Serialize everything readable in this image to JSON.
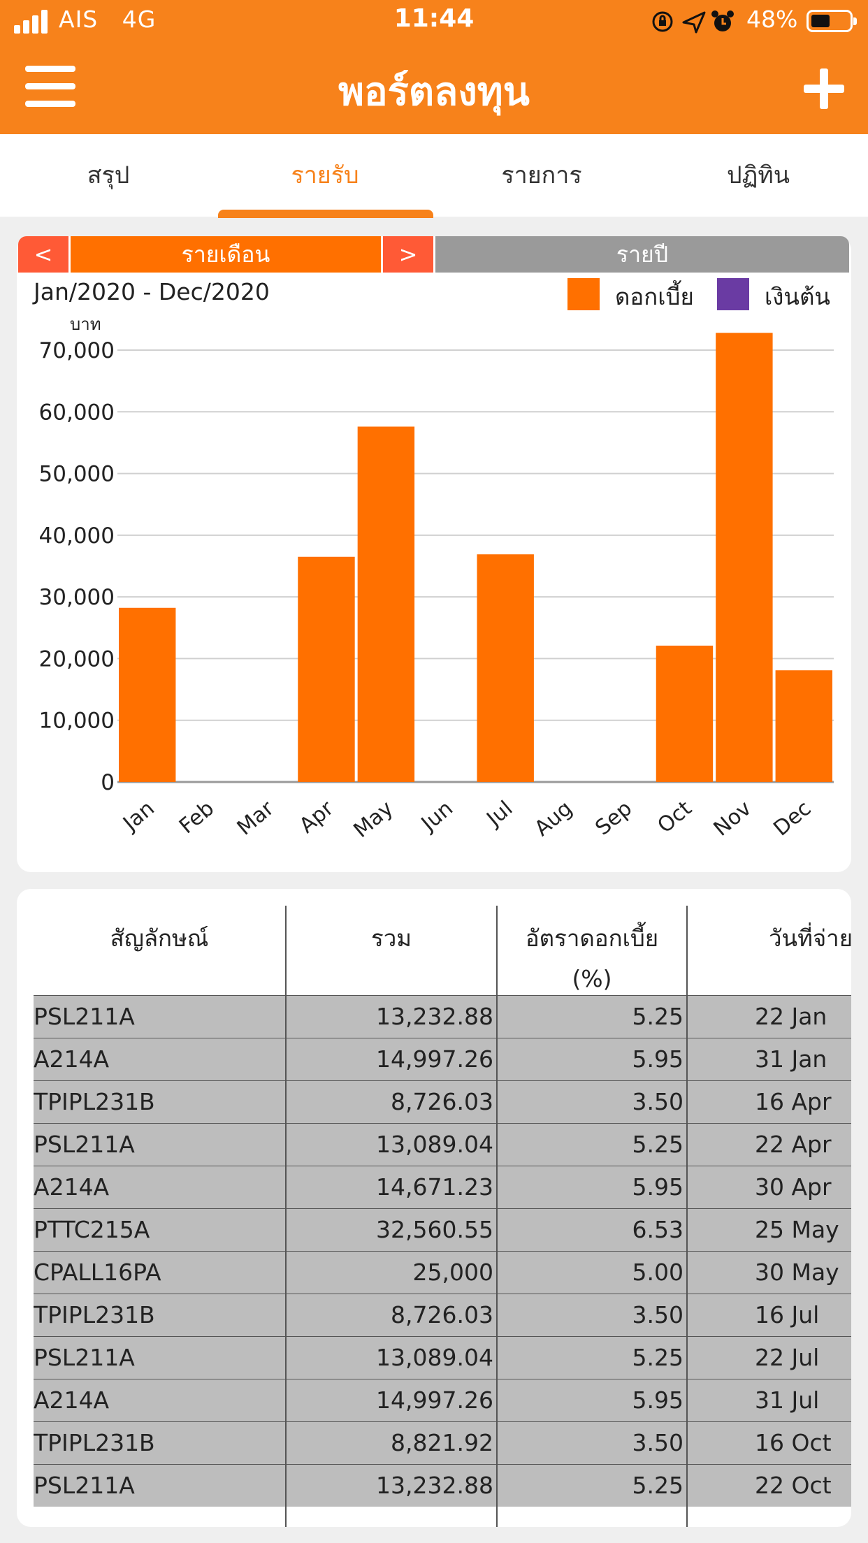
{
  "status_bar": {
    "carrier": "AIS",
    "network": "4G",
    "time": "11:44",
    "battery_percent": "48%",
    "battery_level": 0.48,
    "icons": [
      "signal-icon",
      "orientation-lock-icon",
      "location-arrow-icon",
      "alarm-icon",
      "battery-icon"
    ]
  },
  "app_bar": {
    "title": "พอร์ตลงทุน",
    "menu_icon": "hamburger-menu-icon",
    "add_icon": "plus-icon"
  },
  "tabs": [
    {
      "label": "สรุป",
      "active": false
    },
    {
      "label": "รายรับ",
      "active": true
    },
    {
      "label": "รายการ",
      "active": false
    },
    {
      "label": "ปฏิทิน",
      "active": false
    }
  ],
  "period": {
    "prev_label": "<",
    "monthly_label": "รายเดือน",
    "next_label": ">",
    "yearly_label": "รายปี"
  },
  "colors": {
    "accent": "#f7821b",
    "bar": "#ff7000",
    "nav_red": "#ff5a36",
    "segment_gray": "#9a9a9a",
    "principal": "#6a3ba3"
  },
  "chart_data": {
    "type": "bar",
    "range_label": "Jan/2020 - Dec/2020",
    "ylabel": "บาท",
    "ylim": [
      0,
      70000
    ],
    "yticks": [
      0,
      10000,
      20000,
      30000,
      40000,
      50000,
      60000,
      70000
    ],
    "ytick_labels": [
      "0",
      "10,000",
      "20,000",
      "30,000",
      "40,000",
      "50,000",
      "60,000",
      "70,000"
    ],
    "categories": [
      "Jan",
      "Feb",
      "Mar",
      "Apr",
      "May",
      "Jun",
      "Jul",
      "Aug",
      "Sep",
      "Oct",
      "Nov",
      "Dec"
    ],
    "series": [
      {
        "name": "ดอกเบี้ย",
        "color": "#ff7000",
        "values": [
          28230,
          0,
          0,
          36500,
          57600,
          0,
          36900,
          0,
          0,
          22100,
          72800,
          18100
        ]
      },
      {
        "name": "เงินต้น",
        "color": "#6a3ba3",
        "values": [
          0,
          0,
          0,
          0,
          0,
          0,
          0,
          0,
          0,
          0,
          0,
          0
        ]
      }
    ],
    "grid": true,
    "legend": "top-right"
  },
  "table": {
    "headers": [
      "สัญลักษณ์",
      "รวม",
      "อัตราดอกเบี้ย\n(%)",
      "วันที่จ่าย"
    ],
    "rows": [
      [
        "PSL211A",
        "13,232.88",
        "5.25",
        "22 Jan"
      ],
      [
        "A214A",
        "14,997.26",
        "5.95",
        "31 Jan"
      ],
      [
        "TPIPL231B",
        "8,726.03",
        "3.50",
        "16 Apr"
      ],
      [
        "PSL211A",
        "13,089.04",
        "5.25",
        "22 Apr"
      ],
      [
        "A214A",
        "14,671.23",
        "5.95",
        "30 Apr"
      ],
      [
        "PTTC215A",
        "32,560.55",
        "6.53",
        "25 May"
      ],
      [
        "CPALL16PA",
        "25,000",
        "5.00",
        "30 May"
      ],
      [
        "TPIPL231B",
        "8,726.03",
        "3.50",
        "16 Jul"
      ],
      [
        "PSL211A",
        "13,089.04",
        "5.25",
        "22 Jul"
      ],
      [
        "A214A",
        "14,997.26",
        "5.95",
        "31 Jul"
      ],
      [
        "TPIPL231B",
        "8,821.92",
        "3.50",
        "16 Oct"
      ],
      [
        "PSL211A",
        "13,232.88",
        "5.25",
        "22 Oct"
      ]
    ]
  }
}
